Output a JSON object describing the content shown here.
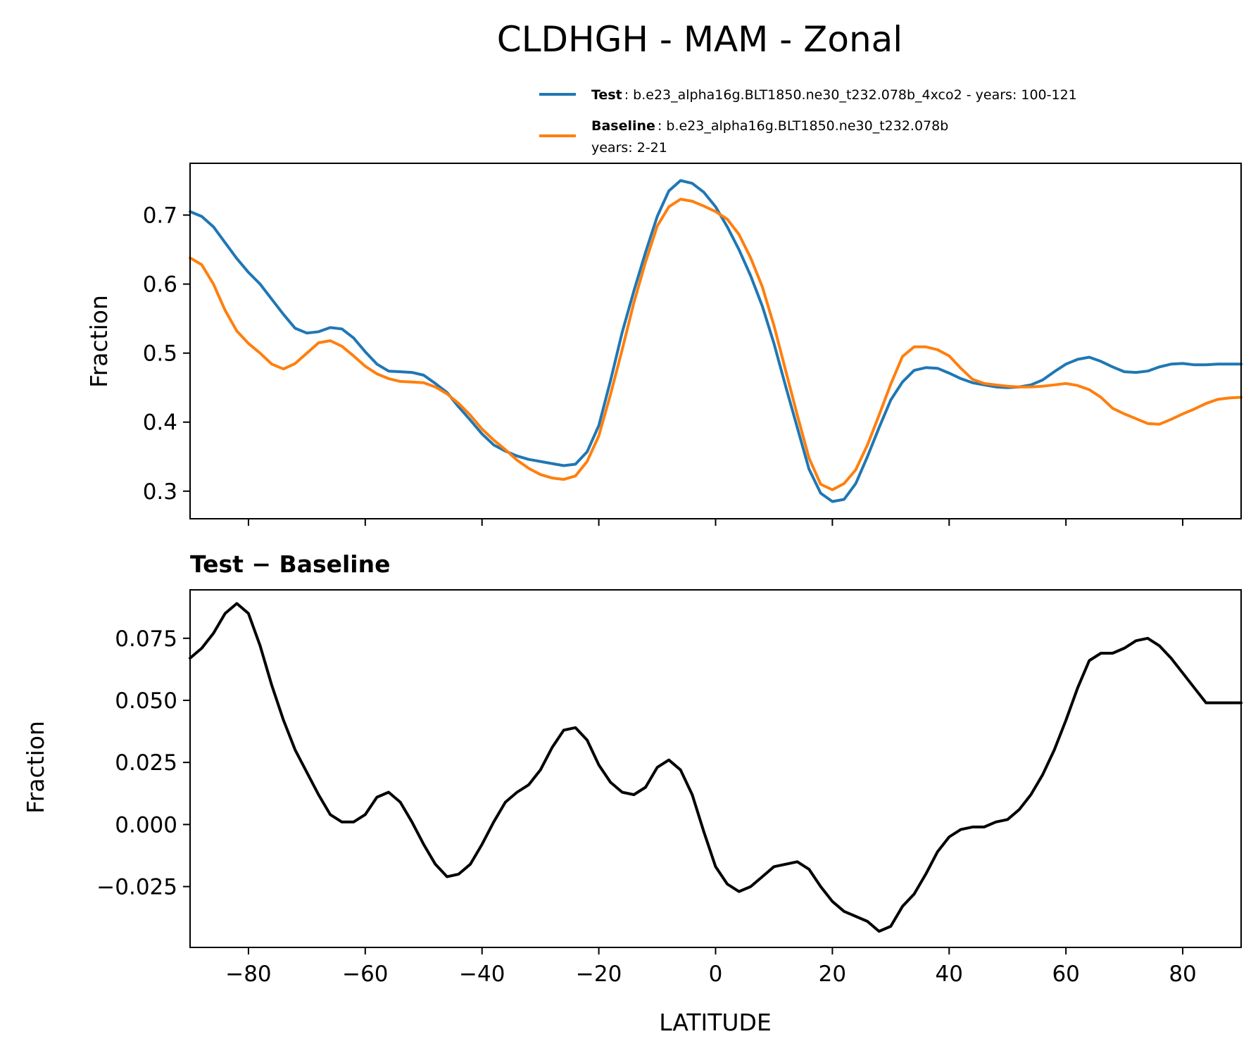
{
  "chart_data": [
    {
      "type": "line",
      "title": "CLDHGH - MAM - Zonal",
      "xlabel": "",
      "ylabel": "Fraction",
      "xlim": [
        -90,
        90
      ],
      "ylim": [
        0.26,
        0.775
      ],
      "xticks": [
        -80,
        -60,
        -40,
        -20,
        0,
        20,
        40,
        60,
        80
      ],
      "yticks": [
        0.3,
        0.4,
        0.5,
        0.6,
        0.7
      ],
      "ytick_labels": [
        "0.3",
        "0.4",
        "0.5",
        "0.6",
        "0.7"
      ],
      "legend": [
        {
          "name_bold": "Test",
          "text": ": b.e23_alpha16g.BLT1850.ne30_t232.078b_4xco2 - years: 100-121",
          "text2": "",
          "color": "#1f77b4"
        },
        {
          "name_bold": "Baseline",
          "text": ": b.e23_alpha16g.BLT1850.ne30_t232.078b",
          "text2": "years: 2-21",
          "color": "#ff7f0e"
        }
      ],
      "series": [
        {
          "name": "Test",
          "color": "#1f77b4",
          "x": [
            -90,
            -88,
            -86,
            -84,
            -82,
            -80,
            -78,
            -76,
            -74,
            -72,
            -70,
            -68,
            -66,
            -64,
            -62,
            -60,
            -58,
            -56,
            -54,
            -52,
            -50,
            -48,
            -46,
            -44,
            -42,
            -40,
            -38,
            -36,
            -34,
            -32,
            -30,
            -28,
            -26,
            -24,
            -22,
            -20,
            -18,
            -16,
            -14,
            -12,
            -10,
            -8,
            -6,
            -4,
            -2,
            0,
            2,
            4,
            6,
            8,
            10,
            12,
            14,
            16,
            18,
            20,
            22,
            24,
            26,
            28,
            30,
            32,
            34,
            36,
            38,
            40,
            42,
            44,
            46,
            48,
            50,
            52,
            54,
            56,
            58,
            60,
            62,
            64,
            66,
            68,
            70,
            72,
            74,
            76,
            78,
            80,
            82,
            84,
            86,
            88,
            90
          ],
          "values": [
            0.705,
            0.698,
            0.683,
            0.66,
            0.637,
            0.617,
            0.6,
            0.578,
            0.556,
            0.536,
            0.529,
            0.531,
            0.537,
            0.535,
            0.522,
            0.502,
            0.484,
            0.474,
            0.473,
            0.472,
            0.468,
            0.456,
            0.443,
            0.422,
            0.403,
            0.383,
            0.367,
            0.358,
            0.351,
            0.346,
            0.343,
            0.34,
            0.337,
            0.339,
            0.357,
            0.395,
            0.46,
            0.53,
            0.59,
            0.646,
            0.698,
            0.735,
            0.75,
            0.746,
            0.733,
            0.712,
            0.683,
            0.65,
            0.612,
            0.568,
            0.514,
            0.452,
            0.392,
            0.332,
            0.297,
            0.285,
            0.288,
            0.311,
            0.35,
            0.392,
            0.432,
            0.458,
            0.475,
            0.479,
            0.478,
            0.471,
            0.463,
            0.457,
            0.454,
            0.451,
            0.45,
            0.451,
            0.454,
            0.461,
            0.473,
            0.484,
            0.491,
            0.494,
            0.488,
            0.48,
            0.473,
            0.472,
            0.474,
            0.48,
            0.484,
            0.485,
            0.483,
            0.483,
            0.484,
            0.484,
            0.484
          ]
        },
        {
          "name": "Baseline",
          "color": "#ff7f0e",
          "x": [
            -90,
            -88,
            -86,
            -84,
            -82,
            -80,
            -78,
            -76,
            -74,
            -72,
            -70,
            -68,
            -66,
            -64,
            -62,
            -60,
            -58,
            -56,
            -54,
            -52,
            -50,
            -48,
            -46,
            -44,
            -42,
            -40,
            -38,
            -36,
            -34,
            -32,
            -30,
            -28,
            -26,
            -24,
            -22,
            -20,
            -18,
            -16,
            -14,
            -12,
            -10,
            -8,
            -6,
            -4,
            -2,
            0,
            2,
            4,
            6,
            8,
            10,
            12,
            14,
            16,
            18,
            20,
            22,
            24,
            26,
            28,
            30,
            32,
            34,
            36,
            38,
            40,
            42,
            44,
            46,
            48,
            50,
            52,
            54,
            56,
            58,
            60,
            62,
            64,
            66,
            68,
            70,
            72,
            74,
            76,
            78,
            80,
            82,
            84,
            86,
            88,
            90
          ],
          "values": [
            0.638,
            0.628,
            0.6,
            0.562,
            0.532,
            0.514,
            0.5,
            0.484,
            0.477,
            0.485,
            0.5,
            0.515,
            0.518,
            0.51,
            0.496,
            0.481,
            0.47,
            0.463,
            0.459,
            0.458,
            0.457,
            0.451,
            0.441,
            0.427,
            0.41,
            0.39,
            0.374,
            0.36,
            0.345,
            0.333,
            0.324,
            0.319,
            0.317,
            0.322,
            0.343,
            0.38,
            0.44,
            0.505,
            0.573,
            0.632,
            0.684,
            0.712,
            0.723,
            0.72,
            0.713,
            0.705,
            0.694,
            0.672,
            0.638,
            0.596,
            0.54,
            0.475,
            0.41,
            0.348,
            0.31,
            0.302,
            0.311,
            0.331,
            0.367,
            0.41,
            0.455,
            0.495,
            0.509,
            0.509,
            0.505,
            0.496,
            0.478,
            0.462,
            0.456,
            0.454,
            0.452,
            0.451,
            0.451,
            0.452,
            0.454,
            0.456,
            0.453,
            0.447,
            0.436,
            0.42,
            0.412,
            0.405,
            0.398,
            0.397,
            0.404,
            0.412,
            0.419,
            0.427,
            0.433,
            0.435,
            0.436
          ]
        }
      ]
    },
    {
      "type": "line",
      "title": "Test − Baseline",
      "xlabel": "LATITUDE",
      "ylabel": "Fraction",
      "xlim": [
        -90,
        90
      ],
      "ylim": [
        -0.0495,
        0.0945
      ],
      "xticks": [
        -80,
        -60,
        -40,
        -20,
        0,
        20,
        40,
        60,
        80
      ],
      "xtick_labels": [
        "−80",
        "−60",
        "−40",
        "−20",
        "0",
        "20",
        "40",
        "60",
        "80"
      ],
      "yticks": [
        -0.025,
        0,
        0.025,
        0.05,
        0.075
      ],
      "ytick_labels": [
        "−0.025",
        "0.000",
        "0.025",
        "0.050",
        "0.075"
      ],
      "series": [
        {
          "name": "Test − Baseline",
          "color": "#000000",
          "x": [
            -90,
            -88,
            -86,
            -84,
            -82,
            -80,
            -78,
            -76,
            -74,
            -72,
            -70,
            -68,
            -66,
            -64,
            -62,
            -60,
            -58,
            -56,
            -54,
            -52,
            -50,
            -48,
            -46,
            -44,
            -42,
            -40,
            -38,
            -36,
            -34,
            -32,
            -30,
            -28,
            -26,
            -24,
            -22,
            -20,
            -18,
            -16,
            -14,
            -12,
            -10,
            -8,
            -6,
            -4,
            -2,
            0,
            2,
            4,
            6,
            8,
            10,
            12,
            14,
            16,
            18,
            20,
            22,
            24,
            26,
            28,
            30,
            32,
            34,
            36,
            38,
            40,
            42,
            44,
            46,
            48,
            50,
            52,
            54,
            56,
            58,
            60,
            62,
            64,
            66,
            68,
            70,
            72,
            74,
            76,
            78,
            80,
            82,
            84,
            86,
            88,
            90
          ],
          "values": [
            0.067,
            0.071,
            0.077,
            0.085,
            0.089,
            0.085,
            0.072,
            0.056,
            0.042,
            0.03,
            0.021,
            0.012,
            0.004,
            0.001,
            0.001,
            0.004,
            0.011,
            0.013,
            0.009,
            0.001,
            -0.008,
            -0.016,
            -0.021,
            -0.02,
            -0.016,
            -0.008,
            0.001,
            0.009,
            0.013,
            0.016,
            0.022,
            0.031,
            0.038,
            0.039,
            0.034,
            0.024,
            0.017,
            0.013,
            0.012,
            0.015,
            0.023,
            0.026,
            0.022,
            0.012,
            -0.003,
            -0.017,
            -0.024,
            -0.027,
            -0.025,
            -0.021,
            -0.017,
            -0.016,
            -0.015,
            -0.018,
            -0.025,
            -0.031,
            -0.035,
            -0.037,
            -0.039,
            -0.043,
            -0.041,
            -0.033,
            -0.028,
            -0.02,
            -0.011,
            -0.005,
            -0.002,
            -0.001,
            -0.001,
            0.001,
            0.002,
            0.006,
            0.012,
            0.02,
            0.03,
            0.042,
            0.055,
            0.066,
            0.069,
            0.069,
            0.071,
            0.074,
            0.075,
            0.072,
            0.067,
            0.061,
            0.055,
            0.049,
            0.049,
            0.049,
            0.049
          ]
        }
      ]
    }
  ]
}
